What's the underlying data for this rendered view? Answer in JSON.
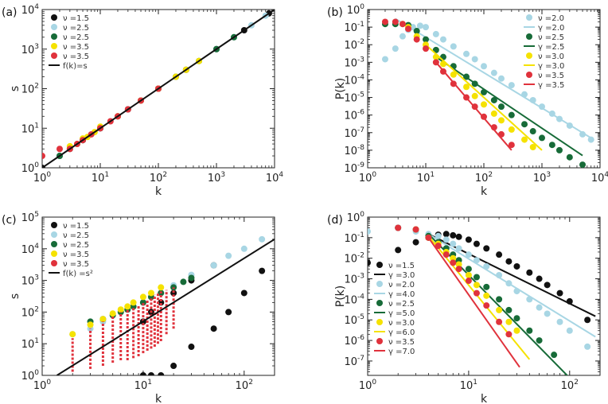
{
  "colors": {
    "black": "#111111",
    "lightblue": "#a8d6e4",
    "green": "#176b38",
    "yellow": "#f5e200",
    "red": "#e0323c"
  },
  "chart_data": [
    {
      "panel": "(a)",
      "type": "scatter",
      "xlabel": "k",
      "ylabel": "s",
      "xscale": "log",
      "yscale": "log",
      "xlim": [
        1,
        10000
      ],
      "ylim": [
        1,
        10000
      ],
      "xticks": [
        1,
        10,
        100,
        1000,
        10000
      ],
      "yticks": [
        1,
        10,
        100,
        1000,
        10000
      ],
      "legend_position": "top-left",
      "legend": [
        "ν =1.5",
        "ν =2.5",
        "ν =2.5",
        "ν =3.5",
        "ν =3.5",
        "f(k)=s"
      ],
      "series": [
        {
          "name": "ν =1.5",
          "color": "black",
          "marker": "circle",
          "x": [
            1,
            2,
            5,
            10,
            30,
            100,
            300,
            1000,
            3000,
            8000
          ],
          "y": [
            1,
            2,
            5,
            10,
            30,
            100,
            300,
            1000,
            3000,
            8000
          ]
        },
        {
          "name": "ν =2.5",
          "color": "lightblue",
          "marker": "circle",
          "x": [
            2,
            3,
            5,
            10,
            20,
            50,
            100,
            200,
            500,
            1000,
            2000,
            4000,
            7000
          ],
          "y": [
            2,
            3,
            5,
            10,
            20,
            50,
            100,
            200,
            500,
            1000,
            2000,
            4000,
            7000
          ]
        },
        {
          "name": "ν =2.5",
          "color": "green",
          "marker": "circle",
          "x": [
            2,
            3,
            5,
            10,
            20,
            50,
            100,
            200,
            500,
            1000,
            2000
          ],
          "y": [
            2,
            3,
            5,
            10,
            20,
            50,
            100,
            200,
            500,
            1000,
            2000
          ]
        },
        {
          "name": "ν =3.5",
          "color": "yellow",
          "marker": "circle",
          "x": [
            3,
            4,
            5,
            6,
            8,
            10,
            20,
            50,
            100,
            200,
            300,
            500
          ],
          "y": [
            3.5,
            4,
            5.5,
            6,
            8,
            11,
            20,
            50,
            100,
            200,
            300,
            500
          ]
        },
        {
          "name": "ν =3.5",
          "color": "red",
          "marker": "circle",
          "x": [
            1,
            2,
            3,
            4,
            5,
            7,
            10,
            15,
            20,
            30,
            50,
            100
          ],
          "y": [
            2,
            3,
            3,
            4,
            5,
            7,
            10,
            15,
            20,
            30,
            50,
            100
          ]
        },
        {
          "name": "f(k)=s",
          "color": "black",
          "marker": "line",
          "x": [
            1,
            10000
          ],
          "y": [
            1,
            10000
          ]
        }
      ]
    },
    {
      "panel": "(b)",
      "type": "scatter",
      "xlabel": "k",
      "ylabel": "P(k)",
      "xscale": "log",
      "yscale": "log",
      "xlim": [
        1,
        10000
      ],
      "ylim": [
        1e-09,
        1
      ],
      "xticks": [
        1,
        10,
        100,
        1000,
        10000
      ],
      "yticks": [
        1e-09,
        1e-08,
        1e-07,
        1e-06,
        1e-05,
        0.0001,
        0.001,
        0.01,
        0.1,
        1
      ],
      "legend_position": "top-right",
      "legend": [
        "ν =2.0",
        "γ =2.0",
        "ν =2.5",
        "γ =2.5",
        "ν =3.0",
        "γ =3.0",
        "ν =3.5",
        "γ =3.5"
      ],
      "series": [
        {
          "name": "ν =2.0",
          "color": "lightblue",
          "marker": "circle",
          "x": [
            2,
            3,
            4,
            5,
            6,
            8,
            10,
            15,
            20,
            30,
            50,
            70,
            100,
            150,
            200,
            300,
            500,
            700,
            1000,
            1500,
            2000,
            3000,
            5000,
            7000
          ],
          "y": [
            0.0015,
            0.006,
            0.03,
            0.07,
            0.1,
            0.12,
            0.1,
            0.04,
            0.02,
            0.008,
            0.003,
            0.0015,
            0.0006,
            0.00025,
            0.00012,
            5e-05,
            1.5e-05,
            7e-06,
            3e-06,
            1.2e-06,
            6e-07,
            2.5e-07,
            8e-08,
            4e-08
          ]
        },
        {
          "name": "γ =2.0",
          "color": "lightblue",
          "marker": "line",
          "x": [
            3,
            7000
          ],
          "y": [
            0.3,
            5e-08
          ]
        },
        {
          "name": "ν =2.5",
          "color": "green",
          "marker": "circle",
          "x": [
            2,
            3,
            5,
            7,
            10,
            15,
            20,
            30,
            50,
            70,
            100,
            150,
            200,
            300,
            500,
            700,
            1000,
            1500,
            2000,
            3000,
            5000
          ],
          "y": [
            0.15,
            0.15,
            0.13,
            0.06,
            0.02,
            0.005,
            0.002,
            0.0006,
            0.00015,
            6e-05,
            2e-05,
            7e-06,
            3e-06,
            1e-06,
            3e-07,
            1.2e-07,
            5e-08,
            2e-08,
            1e-08,
            4e-09,
            1.5e-09
          ]
        },
        {
          "name": "γ =2.5",
          "color": "green",
          "marker": "line",
          "x": [
            15,
            5000
          ],
          "y": [
            0.002,
            5e-09
          ]
        },
        {
          "name": "ν =3.0",
          "color": "yellow",
          "marker": "circle",
          "x": [
            4,
            5,
            7,
            10,
            15,
            20,
            30,
            50,
            70,
            100,
            150,
            200,
            300,
            500,
            700
          ],
          "y": [
            0.15,
            0.1,
            0.03,
            0.01,
            0.002,
            0.0008,
            0.0002,
            4e-05,
            1.2e-05,
            4e-06,
            1.2e-06,
            5e-07,
            1.5e-07,
            4e-08,
            1.5e-08
          ]
        },
        {
          "name": "γ =3.0",
          "color": "yellow",
          "marker": "line",
          "x": [
            10,
            1000
          ],
          "y": [
            0.01,
            1e-08
          ]
        },
        {
          "name": "ν =3.5",
          "color": "red",
          "marker": "circle",
          "x": [
            2,
            3,
            4,
            5,
            7,
            10,
            15,
            20,
            30,
            50,
            70,
            100,
            150,
            200,
            300
          ],
          "y": [
            0.2,
            0.2,
            0.15,
            0.08,
            0.02,
            0.006,
            0.001,
            0.0003,
            6e-05,
            1e-05,
            3e-06,
            8e-07,
            2e-07,
            8e-08,
            2e-08
          ]
        },
        {
          "name": "γ =3.5",
          "color": "red",
          "marker": "line",
          "x": [
            15,
            300
          ],
          "y": [
            0.001,
            1e-08
          ]
        }
      ]
    },
    {
      "panel": "(c)",
      "type": "scatter",
      "xlabel": "k",
      "ylabel": "s",
      "xscale": "log",
      "yscale": "log",
      "xlim": [
        1,
        200
      ],
      "ylim": [
        1,
        100000
      ],
      "xticks": [
        1,
        10,
        100
      ],
      "yticks": [
        1,
        10,
        100,
        1000,
        10000,
        100000
      ],
      "legend_position": "top-left",
      "legend": [
        "ν =1.5",
        "ν =2.5",
        "ν =2.5",
        "ν =3.5",
        "ν =3.5",
        "f(k) =s²"
      ],
      "series": [
        {
          "name": "ν =1.5",
          "color": "black",
          "marker": "circle",
          "x": [
            10,
            10,
            12,
            12,
            15,
            15,
            20,
            20,
            30,
            30,
            50,
            50,
            70,
            100,
            150
          ],
          "y": [
            1,
            50,
            1,
            100,
            1,
            200,
            2,
            400,
            8,
            1000,
            30,
            3000,
            100,
            400,
            2000
          ]
        },
        {
          "name": "ν =2.5",
          "color": "lightblue",
          "marker": "circle",
          "x": [
            2,
            3,
            4,
            5,
            7,
            10,
            15,
            20,
            30,
            50,
            70,
            100,
            150
          ],
          "y": [
            20,
            30,
            50,
            80,
            120,
            200,
            400,
            700,
            1500,
            3000,
            6000,
            10000,
            20000
          ]
        },
        {
          "name": "ν =2.5",
          "color": "green",
          "marker": "circle",
          "x": [
            3,
            4,
            5,
            6,
            7,
            8,
            10,
            12,
            15,
            20,
            25,
            30
          ],
          "y": [
            50,
            60,
            80,
            100,
            120,
            150,
            200,
            300,
            400,
            600,
            900,
            1200
          ]
        },
        {
          "name": "ν =3.5",
          "color": "yellow",
          "marker": "circle",
          "x": [
            2,
            3,
            4,
            5,
            6,
            7,
            8,
            10,
            12,
            15
          ],
          "y": [
            20,
            40,
            60,
            90,
            120,
            150,
            200,
            300,
            400,
            600
          ]
        },
        {
          "name": "ν =3.5",
          "color": "red",
          "marker": "stripe",
          "x": [
            2,
            3,
            4,
            5,
            6,
            7,
            8,
            9,
            10,
            11,
            12,
            13,
            14,
            15,
            17,
            20
          ],
          "ymin": [
            1.3,
            1.6,
            2,
            2.5,
            3,
            3,
            3.5,
            4,
            5,
            6,
            7,
            8,
            10,
            12,
            20,
            30
          ],
          "ymax": [
            15,
            30,
            50,
            80,
            100,
            120,
            150,
            160,
            200,
            250,
            300,
            350,
            400,
            450,
            500,
            600
          ]
        },
        {
          "name": "f(k) =s²",
          "color": "black",
          "marker": "line",
          "x": [
            1.4,
            200
          ],
          "y": [
            1,
            20000
          ]
        }
      ]
    },
    {
      "panel": "(d)",
      "type": "scatter",
      "xlabel": "k",
      "ylabel": "P(k)",
      "xscale": "log",
      "yscale": "log",
      "xlim": [
        1,
        200
      ],
      "ylim": [
        2e-08,
        1
      ],
      "xticks": [
        1,
        10,
        100
      ],
      "yticks": [
        1e-07,
        1e-06,
        1e-05,
        0.0001,
        0.001,
        0.01,
        0.1,
        1
      ],
      "legend_position": "left",
      "legend": [
        "ν =1.5",
        "γ =3.0",
        "ν =2.0",
        "γ =4.0",
        "ν =2.5",
        "γ =5.0",
        "ν =3.0",
        "γ =6.0",
        "ν =3.5",
        "γ =7.0"
      ],
      "series": [
        {
          "name": "ν =1.5",
          "color": "black",
          "marker": "circle",
          "x": [
            1,
            2,
            3,
            4,
            5,
            6,
            7,
            8,
            10,
            12,
            15,
            20,
            25,
            30,
            40,
            50,
            60,
            80,
            100,
            150
          ],
          "y": [
            0.006,
            0.025,
            0.06,
            0.1,
            0.14,
            0.15,
            0.13,
            0.11,
            0.08,
            0.05,
            0.03,
            0.015,
            0.007,
            0.004,
            0.002,
            0.001,
            0.0005,
            0.0002,
            8e-05,
            1e-05
          ]
        },
        {
          "name": "γ =3.0",
          "color": "black",
          "marker": "line",
          "x": [
            4,
            180
          ],
          "y": [
            0.15,
            1.5e-05
          ]
        },
        {
          "name": "ν =2.0",
          "color": "lightblue",
          "marker": "circle",
          "x": [
            1,
            2,
            3,
            4,
            5,
            6,
            7,
            8,
            10,
            12,
            15,
            20,
            25,
            30,
            40,
            50,
            60,
            80,
            100,
            150
          ],
          "y": [
            0.2,
            0.3,
            0.2,
            0.15,
            0.12,
            0.08,
            0.05,
            0.03,
            0.015,
            0.008,
            0.004,
            0.0015,
            0.0006,
            0.00025,
            0.0001,
            4e-05,
            2e-05,
            8e-06,
            3e-06,
            5e-07
          ]
        },
        {
          "name": "γ =4.0",
          "color": "lightblue",
          "marker": "line",
          "x": [
            4,
            180
          ],
          "y": [
            0.15,
            1.5e-06
          ]
        },
        {
          "name": "ν =2.5",
          "color": "green",
          "marker": "circle",
          "x": [
            2,
            3,
            4,
            5,
            6,
            7,
            8,
            10,
            12,
            15,
            20,
            25,
            30,
            40,
            50,
            70
          ],
          "y": [
            0.3,
            0.25,
            0.12,
            0.06,
            0.03,
            0.015,
            0.008,
            0.003,
            0.0012,
            0.0004,
            0.0001,
            3e-05,
            1.2e-05,
            3e-06,
            1e-06,
            2e-07
          ]
        },
        {
          "name": "γ =5.0",
          "color": "green",
          "marker": "line",
          "x": [
            4,
            100
          ],
          "y": [
            0.15,
            1.5e-08
          ]
        },
        {
          "name": "ν =3.0",
          "color": "yellow",
          "marker": "circle",
          "x": [
            3,
            4,
            5,
            6,
            7,
            8,
            10,
            12,
            15,
            20,
            25,
            30
          ],
          "y": [
            0.25,
            0.1,
            0.05,
            0.02,
            0.01,
            0.005,
            0.0015,
            0.0005,
            0.00015,
            3e-05,
            8e-06,
            3e-06
          ]
        },
        {
          "name": "γ =6.0",
          "color": "yellow",
          "marker": "line",
          "x": [
            4,
            40
          ],
          "y": [
            0.12,
            1.2e-07
          ]
        },
        {
          "name": "ν =3.5",
          "color": "red",
          "marker": "circle",
          "x": [
            2,
            3,
            4,
            5,
            6,
            7,
            8,
            10,
            12,
            15,
            20,
            25
          ],
          "y": [
            0.3,
            0.25,
            0.1,
            0.04,
            0.015,
            0.006,
            0.003,
            0.0008,
            0.0002,
            5e-05,
            8e-06,
            2e-06
          ]
        },
        {
          "name": "γ =7.0",
          "color": "red",
          "marker": "line",
          "x": [
            4,
            32
          ],
          "y": [
            0.1,
            5e-08
          ]
        }
      ]
    }
  ]
}
